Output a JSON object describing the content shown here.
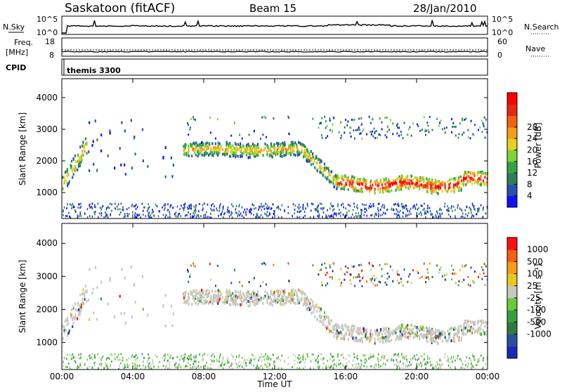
{
  "header": {
    "station": "Saskatoon (fitACF)",
    "beam": "Beam 15",
    "date": "28/Jan/2010"
  },
  "nsky_panel": {
    "left_label": "N.Sky",
    "right_label": "N.Search",
    "left_ticks": [
      "10^5",
      "10^0"
    ],
    "right_ticks": [
      "10^5",
      "10^0"
    ]
  },
  "freq_panel": {
    "left_label_1": "Freq.",
    "left_label_2": "[MHz]",
    "right_label": "Nave",
    "left_ticks": [
      "18",
      "8"
    ],
    "right_ticks": [
      "60",
      "0"
    ]
  },
  "cpid": {
    "label": "CPID",
    "value": "themis 3300"
  },
  "chart_data": [
    {
      "type": "heatmap",
      "name": "power",
      "ylabel": "Slant Range [km]",
      "yticks": [
        1000,
        2000,
        3000,
        4000
      ],
      "ylim": [
        180,
        4600
      ],
      "xlim_hours": [
        0,
        24
      ],
      "x_tick_labels": [
        "00:00",
        "04:00",
        "08:00",
        "12:00",
        "16:00",
        "20:00",
        "00:00"
      ],
      "colorbar": {
        "label": "Power [dB]",
        "ticks": [
          "4",
          "8",
          "12",
          "16",
          "20",
          "24",
          "28"
        ],
        "colors": [
          "#1010ff",
          "#2850b0",
          "#2f7d5a",
          "#36a245",
          "#7ed23a",
          "#e6d020",
          "#f59c1a",
          "#f5620e",
          "#e62810",
          "#ff0000"
        ]
      }
    },
    {
      "type": "heatmap",
      "name": "velocity",
      "ylabel": "Slant Range [km]",
      "yticks": [
        1000,
        2000,
        3000,
        4000
      ],
      "ylim": [
        180,
        4600
      ],
      "xlim_hours": [
        0,
        24
      ],
      "x_tick_labels": [
        "00:00",
        "04:00",
        "08:00",
        "12:00",
        "16:00",
        "20:00",
        "00:00"
      ],
      "xlabel": "Time UT",
      "colorbar": {
        "label": "Velocity [m s⁻¹]",
        "ticks": [
          "1000",
          "500",
          "100",
          "25",
          "-25",
          "-100",
          "-500",
          "-1000"
        ],
        "colors": [
          "#1c28b8",
          "#2a4fa0",
          "#2f7a3c",
          "#36a040",
          "#66cc3a",
          "#c8c8c0",
          "#e6c820",
          "#f59c1a",
          "#f56010",
          "#ff1010"
        ]
      }
    }
  ]
}
